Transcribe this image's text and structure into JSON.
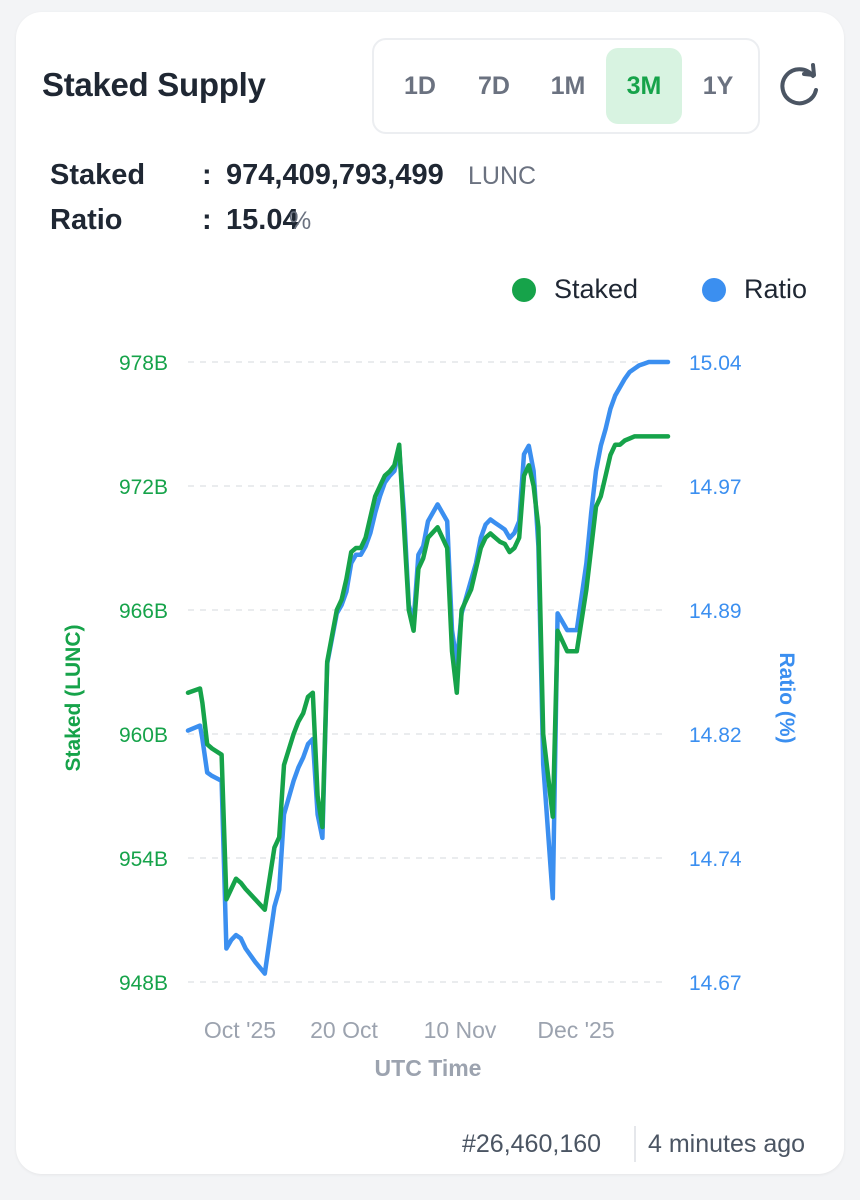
{
  "header": {
    "title": "Staked Supply",
    "tabs": [
      {
        "label": "1D",
        "active": false
      },
      {
        "label": "7D",
        "active": false
      },
      {
        "label": "1M",
        "active": false
      },
      {
        "label": "3M",
        "active": true
      },
      {
        "label": "1Y",
        "active": false
      }
    ],
    "refresh_icon": "refresh-icon"
  },
  "stats": {
    "staked_label": "Staked",
    "staked_value": "974,409,793,499",
    "staked_unit": "LUNC",
    "ratio_label": "Ratio",
    "ratio_value": "15.04",
    "ratio_unit": "%",
    "colon": ":"
  },
  "colors": {
    "staked": "#16a34a",
    "ratio": "#3b8ff0",
    "accent_bg": "#d8f3e1"
  },
  "footer": {
    "block": "#26,460,160",
    "updated": "4 minutes ago"
  },
  "chart_data": {
    "type": "line",
    "xlabel": "UTC Time",
    "x_ticks": [
      "Oct '25",
      "20 Oct",
      "10 Nov",
      "Dec '25"
    ],
    "legend": [
      "Staked",
      "Ratio"
    ],
    "legend_position": "top-right",
    "grid": true,
    "y_left": {
      "label": "Staked (LUNC)",
      "ticks": [
        "978B",
        "972B",
        "966B",
        "960B",
        "954B",
        "948B"
      ],
      "range_billion": [
        948,
        978
      ]
    },
    "y_right": {
      "label": "Ratio (%)",
      "ticks": [
        "15.04",
        "14.97",
        "14.89",
        "14.82",
        "14.74",
        "14.67"
      ],
      "range_percent": [
        14.67,
        15.04
      ]
    },
    "x_domain": [
      0,
      100
    ],
    "series": [
      {
        "name": "Staked",
        "axis": "left",
        "unit": "B",
        "x": [
          0,
          2.5,
          3,
          4,
          5,
          7,
          8,
          9,
          10,
          11,
          12,
          14,
          16,
          18,
          19,
          20,
          22,
          23,
          24,
          25,
          26,
          27,
          28,
          29,
          31,
          32,
          33,
          34,
          35,
          36,
          37,
          38,
          39,
          40,
          41,
          42,
          43,
          44,
          45,
          46,
          47,
          48,
          49,
          50,
          52,
          54,
          55,
          56,
          57,
          58,
          59,
          60,
          61,
          62,
          63,
          64,
          65,
          66,
          67,
          68,
          69,
          70,
          71,
          72,
          73,
          74,
          75,
          76,
          77,
          79,
          81,
          83,
          84,
          85,
          86,
          87,
          88,
          89,
          90,
          91,
          92,
          93,
          94,
          95,
          96,
          97,
          98,
          99,
          100
        ],
        "values": [
          962.0,
          962.2,
          961.5,
          959.5,
          959.3,
          959.0,
          952.0,
          952.5,
          953.0,
          952.8,
          952.5,
          952.0,
          951.5,
          954.5,
          955.0,
          958.5,
          960.0,
          960.6,
          961.0,
          961.8,
          962.0,
          957.0,
          955.5,
          963.5,
          966.0,
          966.5,
          967.5,
          968.8,
          969.0,
          969.0,
          969.5,
          970.5,
          971.5,
          972.0,
          972.5,
          972.7,
          973.0,
          974.0,
          970.0,
          966.0,
          965.0,
          968.0,
          968.5,
          969.5,
          970.0,
          969.0,
          964.0,
          962.0,
          966.0,
          966.5,
          967.0,
          968.0,
          969.0,
          969.5,
          969.7,
          969.5,
          969.3,
          969.2,
          968.8,
          969.0,
          969.5,
          972.5,
          973.0,
          972.0,
          970.0,
          960.0,
          958.0,
          956.0,
          965.0,
          964.0,
          964.0,
          967.0,
          969.0,
          971.0,
          971.5,
          972.5,
          973.5,
          974.0,
          974.0,
          974.2,
          974.3,
          974.4,
          974.4,
          974.4,
          974.4,
          974.4,
          974.4,
          974.4,
          974.4
        ]
      },
      {
        "name": "Ratio",
        "axis": "right",
        "unit": "%",
        "x": [
          0,
          2.5,
          3,
          4,
          5,
          7,
          8,
          9,
          10,
          11,
          12,
          14,
          16,
          18,
          19,
          20,
          22,
          23,
          24,
          25,
          26,
          27,
          28,
          29,
          31,
          32,
          33,
          34,
          35,
          36,
          37,
          38,
          39,
          40,
          41,
          42,
          43,
          44,
          45,
          46,
          47,
          48,
          49,
          50,
          52,
          54,
          55,
          56,
          57,
          58,
          59,
          60,
          61,
          62,
          63,
          64,
          65,
          66,
          67,
          68,
          69,
          70,
          71,
          72,
          73,
          74,
          75,
          76,
          77,
          79,
          81,
          83,
          84,
          85,
          86,
          87,
          88,
          89,
          90,
          91,
          92,
          93,
          94,
          95,
          96,
          97,
          98,
          99,
          100
        ],
        "values": [
          14.82,
          14.823,
          14.815,
          14.795,
          14.793,
          14.79,
          14.69,
          14.695,
          14.698,
          14.696,
          14.69,
          14.682,
          14.675,
          14.715,
          14.725,
          14.77,
          14.79,
          14.798,
          14.804,
          14.812,
          14.815,
          14.77,
          14.756,
          14.86,
          14.89,
          14.895,
          14.903,
          14.92,
          14.925,
          14.925,
          14.93,
          14.938,
          14.95,
          14.96,
          14.968,
          14.972,
          14.975,
          14.988,
          14.95,
          14.895,
          14.885,
          14.925,
          14.93,
          14.945,
          14.955,
          14.945,
          14.88,
          14.86,
          14.89,
          14.9,
          14.91,
          14.92,
          14.935,
          14.943,
          14.946,
          14.944,
          14.942,
          14.94,
          14.935,
          14.938,
          14.945,
          14.985,
          14.99,
          14.975,
          14.93,
          14.8,
          14.76,
          14.72,
          14.89,
          14.88,
          14.88,
          14.92,
          14.95,
          14.975,
          14.99,
          15.0,
          15.012,
          15.02,
          15.025,
          15.03,
          15.034,
          15.036,
          15.038,
          15.039,
          15.04,
          15.04,
          15.04,
          15.04,
          15.04
        ]
      }
    ]
  }
}
